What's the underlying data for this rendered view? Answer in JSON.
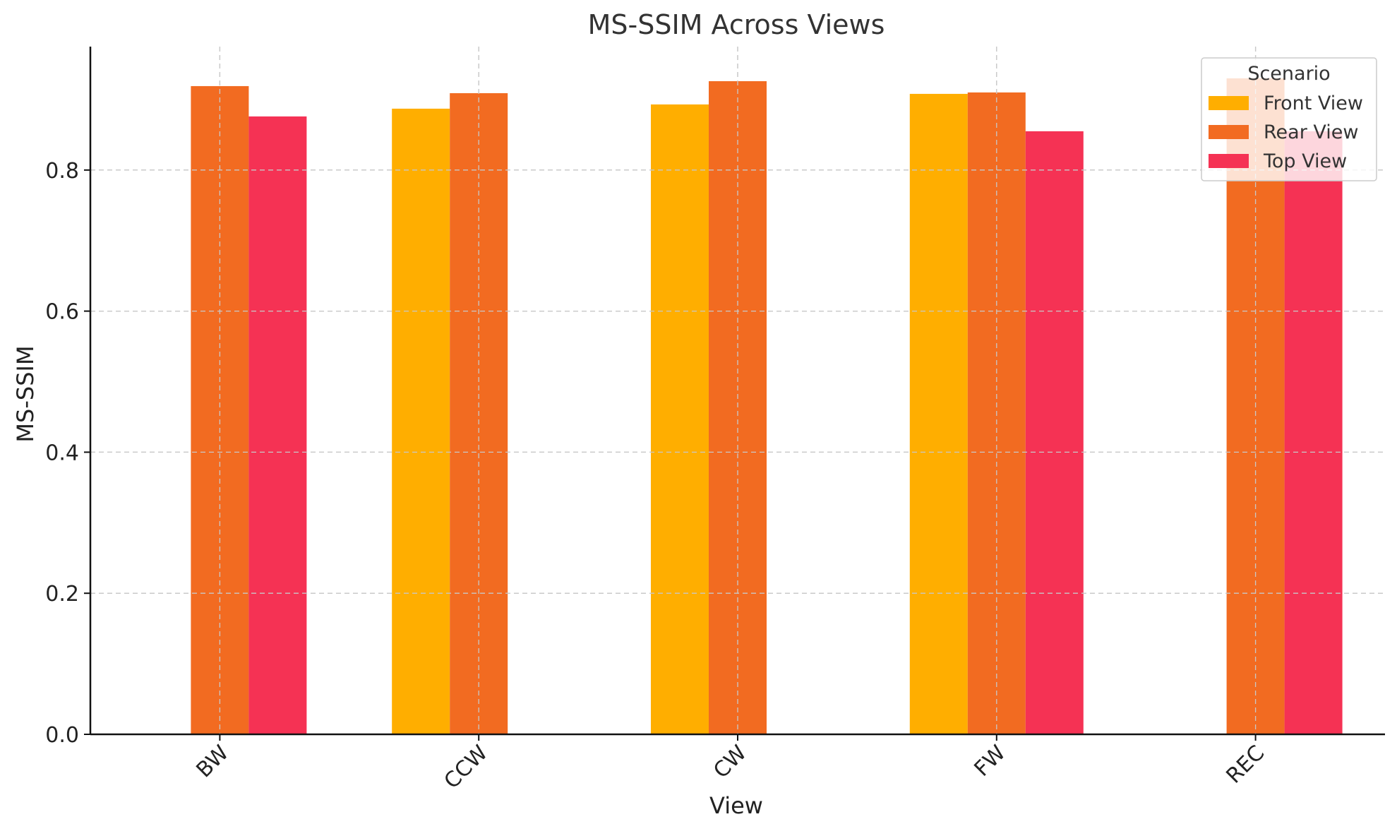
{
  "chart_data": {
    "type": "bar",
    "title": "MS-SSIM Across Views",
    "xlabel": "View",
    "ylabel": "MS-SSIM",
    "categories": [
      "BW",
      "CCW",
      "CW",
      "FW",
      "REC"
    ],
    "series": [
      {
        "name": "Front View",
        "color": "#FFAE00",
        "values": [
          null,
          0.887,
          0.893,
          0.908,
          null
        ]
      },
      {
        "name": "Rear View",
        "color": "#F26B21",
        "values": [
          0.919,
          0.909,
          0.926,
          0.91,
          0.93
        ]
      },
      {
        "name": "Top View",
        "color": "#F53254",
        "values": [
          0.876,
          null,
          null,
          0.855,
          0.855
        ]
      }
    ],
    "ylim": [
      0,
      0.975
    ],
    "yticks": [
      "0.0",
      "0.2",
      "0.4",
      "0.6",
      "0.8"
    ],
    "grid": true,
    "legend": {
      "title": "Scenario",
      "placement": "top-right"
    }
  }
}
